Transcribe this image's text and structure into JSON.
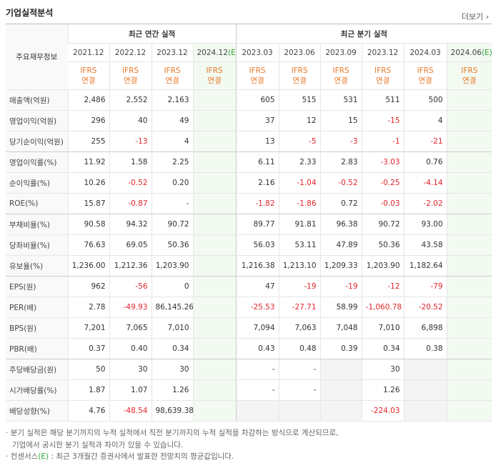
{
  "header": {
    "title": "기업실적분석",
    "more": "더보기"
  },
  "table": {
    "corner": "주요재무정보",
    "groups": [
      {
        "label": "최근 연간 실적",
        "span": 4
      },
      {
        "label": "최근 분기 실적",
        "span": 6
      }
    ],
    "columns": [
      {
        "date": "2021.12",
        "standard": "IFRS",
        "basis": "연결"
      },
      {
        "date": "2022.12",
        "standard": "IFRS",
        "basis": "연결"
      },
      {
        "date": "2023.12",
        "standard": "IFRS",
        "basis": "연결"
      },
      {
        "date": "2024.12",
        "estimate": "(E)",
        "standard": "IFRS",
        "basis": "연결"
      },
      {
        "date": "2023.03",
        "standard": "IFRS",
        "basis": "연결"
      },
      {
        "date": "2023.06",
        "standard": "IFRS",
        "basis": "연결"
      },
      {
        "date": "2023.09",
        "standard": "IFRS",
        "basis": "연결"
      },
      {
        "date": "2023.12",
        "standard": "IFRS",
        "basis": "연결"
      },
      {
        "date": "2024.03",
        "standard": "IFRS",
        "basis": "연결"
      },
      {
        "date": "2024.06",
        "estimate": "(E)",
        "standard": "IFRS",
        "basis": "연결"
      }
    ],
    "rows": [
      {
        "label": "매출액(억원)",
        "cells": [
          "2,486",
          "2,552",
          "2,163",
          null,
          "605",
          "515",
          "531",
          "511",
          "500",
          null
        ]
      },
      {
        "label": "영업이익(억원)",
        "cells": [
          "296",
          "40",
          "49",
          null,
          "37",
          "12",
          "15",
          "-15",
          "4",
          null
        ]
      },
      {
        "label": "당기순이익(억원)",
        "cells": [
          "255",
          "-13",
          "4",
          null,
          "13",
          "-5",
          "-3",
          "-1",
          "-21",
          null
        ]
      },
      {
        "label": "영업이익률(%)",
        "cells": [
          "11.92",
          "1.58",
          "2.25",
          null,
          "6.11",
          "2.33",
          "2.83",
          "-3.03",
          "0.76",
          null
        ]
      },
      {
        "label": "순이익률(%)",
        "cells": [
          "10.26",
          "-0.52",
          "0.20",
          null,
          "2.16",
          "-1.04",
          "-0.52",
          "-0.25",
          "-4.14",
          null
        ]
      },
      {
        "label": "ROE(%)",
        "cells": [
          "15.87",
          "-0.87",
          "-",
          null,
          "-1.82",
          "-1.86",
          "0.72",
          "-0.03",
          "-2.02",
          null
        ]
      },
      {
        "label": "부채비율(%)",
        "cells": [
          "90.58",
          "94.32",
          "90.72",
          null,
          "89.77",
          "91.81",
          "96.38",
          "90.72",
          "93.00",
          null
        ]
      },
      {
        "label": "당좌비율(%)",
        "cells": [
          "76.63",
          "69.05",
          "50.36",
          null,
          "56.03",
          "53.11",
          "47.89",
          "50.36",
          "43.58",
          null
        ]
      },
      {
        "label": "유보율(%)",
        "cells": [
          "1,236.00",
          "1,212.36",
          "1,203.90",
          null,
          "1,216.38",
          "1,213.10",
          "1,209.33",
          "1,203.90",
          "1,182.64",
          null
        ]
      },
      {
        "label": "EPS(원)",
        "cells": [
          "962",
          "-56",
          "0",
          null,
          "47",
          "-19",
          "-19",
          "-12",
          "-79",
          null
        ]
      },
      {
        "label": "PER(배)",
        "cells": [
          "2.78",
          "-49.93",
          "86,145.26",
          null,
          "-25.53",
          "-27.71",
          "58.99",
          "-1,060.78",
          "-20.52",
          null
        ]
      },
      {
        "label": "BPS(원)",
        "cells": [
          "7,201",
          "7,065",
          "7,010",
          null,
          "7,094",
          "7,063",
          "7,048",
          "7,010",
          "6,898",
          null
        ]
      },
      {
        "label": "PBR(배)",
        "cells": [
          "0.37",
          "0.40",
          "0.34",
          null,
          "0.43",
          "0.48",
          "0.39",
          "0.34",
          "0.38",
          null
        ]
      },
      {
        "label": "주당배당금(원)",
        "cells": [
          "50",
          "30",
          "30",
          null,
          "-",
          "-",
          null,
          "30",
          null,
          null
        ]
      },
      {
        "label": "시가배당률(%)",
        "cells": [
          "1.87",
          "1.07",
          "1.26",
          null,
          "-",
          "-",
          null,
          "1.26",
          null,
          null
        ]
      },
      {
        "label": "배당성향(%)",
        "cells": [
          "4.76",
          "-48.54",
          "98,639.38",
          null,
          null,
          null,
          null,
          "-224.03",
          null,
          null
        ]
      }
    ]
  },
  "notes": [
    [
      "분기 실적은 해당 분기까지의 누적 실적에서 직전 분기까지의 누적 실적을 차감하는 방식으로 계산되므로,",
      "기업에서 공시한 분기 실적과 차이가 있을 수 있습니다."
    ],
    [
      "컨센서스",
      "(E)",
      ": 최근 3개월간 증권사에서 발표한 전망치의 평균값입니다."
    ]
  ]
}
